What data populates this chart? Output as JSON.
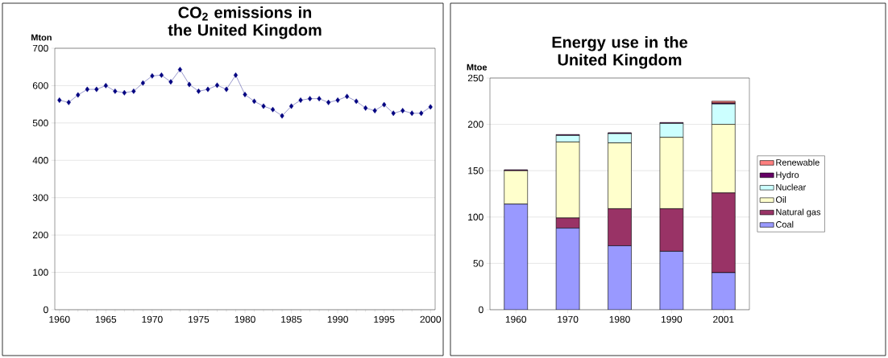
{
  "chart_data": [
    {
      "type": "line",
      "title": "CO$_{2}$ emissions in the United Kingdom",
      "ylabel": "Mton",
      "color": "#000080",
      "marker": "diamond",
      "grid": "y",
      "x": [
        1960,
        1961,
        1962,
        1963,
        1964,
        1965,
        1966,
        1967,
        1968,
        1969,
        1970,
        1971,
        1972,
        1973,
        1974,
        1975,
        1976,
        1977,
        1978,
        1979,
        1980,
        1981,
        1982,
        1983,
        1984,
        1985,
        1986,
        1987,
        1988,
        1989,
        1990,
        1991,
        1992,
        1993,
        1994,
        1995,
        1996,
        1997,
        1998,
        1999,
        2000
      ],
      "values": [
        561,
        555,
        575,
        590,
        590,
        600,
        585,
        581,
        585,
        607,
        626,
        628,
        610,
        643,
        603,
        585,
        590,
        601,
        590,
        628,
        576,
        558,
        545,
        536,
        519,
        545,
        561,
        565,
        565,
        555,
        561,
        571,
        558,
        540,
        533,
        549,
        526,
        533,
        526,
        526,
        543
      ],
      "xlim": [
        1959.5,
        2000.5
      ],
      "xticks": [
        1960,
        1965,
        1970,
        1975,
        1980,
        1985,
        1990,
        1995,
        2000
      ],
      "ylim": [
        0,
        700
      ],
      "yticks": [
        0,
        100,
        200,
        300,
        400,
        500,
        600,
        700
      ]
    },
    {
      "type": "bar",
      "stacked": true,
      "title": "Energy use in the United Kingdom",
      "ylabel": "Mtoe",
      "grid": "y",
      "legend": "right",
      "categories": [
        "1960",
        "1970",
        "1980",
        "1990",
        "2001"
      ],
      "series": [
        {
          "name": "Coal",
          "color": "#9999ff",
          "values": [
            114,
            88,
            69,
            63,
            40
          ]
        },
        {
          "name": "Natural gas",
          "color": "#993366",
          "values": [
            0,
            11,
            40,
            46,
            86
          ]
        },
        {
          "name": "Oil",
          "color": "#ffffcc",
          "values": [
            36,
            82,
            71,
            77,
            74
          ]
        },
        {
          "name": "Nuclear",
          "color": "#ccffff",
          "values": [
            0,
            7,
            10,
            15,
            22
          ]
        },
        {
          "name": "Hydro",
          "color": "#660066",
          "values": [
            1,
            1,
            1,
            1,
            1
          ]
        },
        {
          "name": "Renewable",
          "color": "#ff8080",
          "values": [
            0,
            0,
            0,
            0,
            2
          ]
        }
      ],
      "ylim": [
        0,
        250
      ],
      "yticks": [
        0,
        50,
        100,
        150,
        200,
        250
      ]
    }
  ]
}
